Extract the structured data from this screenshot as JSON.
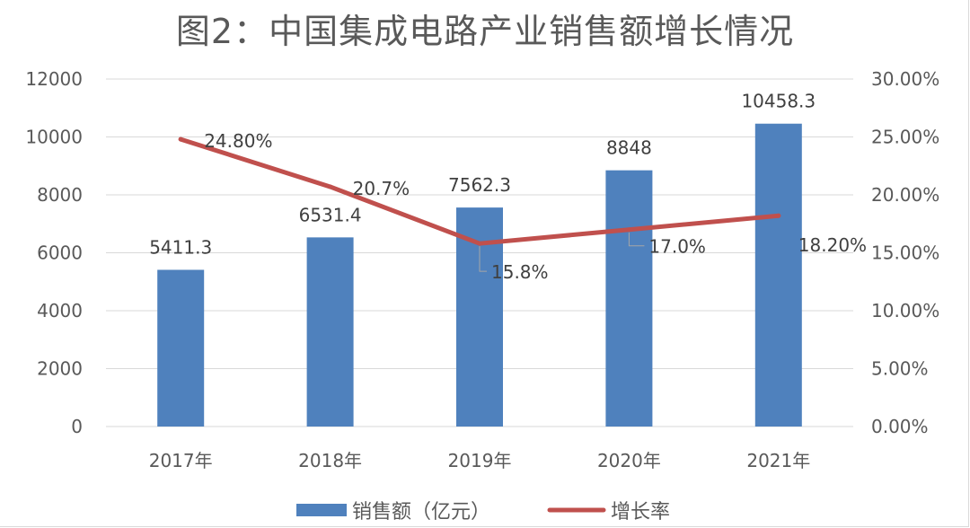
{
  "chart_data": {
    "type": "bar",
    "title": "图2：中国集成电路产业销售额增长情况",
    "categories": [
      "2017年",
      "2018年",
      "2019年",
      "2020年",
      "2021年"
    ],
    "series": [
      {
        "name": "销售额（亿元）",
        "type": "bar",
        "axis": "left",
        "color": "#4f81bd",
        "values": [
          5411.3,
          6531.4,
          7562.3,
          8848,
          10458.3
        ],
        "labels": [
          "5411.3",
          "6531.4",
          "7562.3",
          "8848",
          "10458.3"
        ]
      },
      {
        "name": "增长率",
        "type": "line",
        "axis": "right",
        "color": "#c0504d",
        "values": [
          24.8,
          20.7,
          15.8,
          17.0,
          18.2
        ],
        "labels": [
          "24.80%",
          "20.7%",
          "15.8%",
          "17.0%",
          "18.20%"
        ]
      }
    ],
    "y_left": {
      "min": 0,
      "max": 12000,
      "ticks": [
        "0",
        "2000",
        "4000",
        "6000",
        "8000",
        "10000",
        "12000"
      ]
    },
    "y_right": {
      "min": 0,
      "max": 30,
      "ticks": [
        "0.00%",
        "5.00%",
        "10.00%",
        "15.00%",
        "20.00%",
        "25.00%",
        "30.00%"
      ]
    },
    "grid": true,
    "legend": "bottom"
  }
}
